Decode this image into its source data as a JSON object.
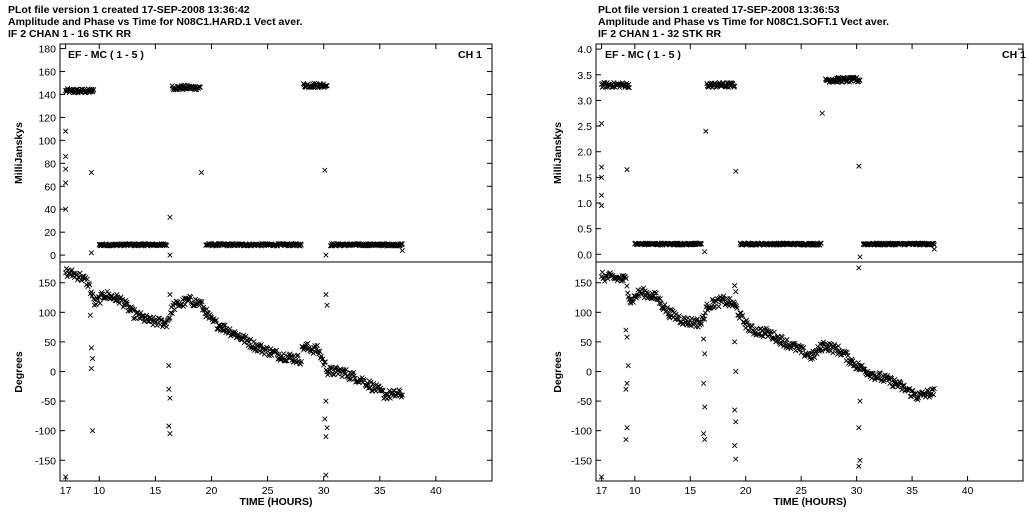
{
  "chart_data": [
    {
      "type": "scatter",
      "header_lines": [
        "PLot file version 1  created 17-SEP-2008 13:36:42",
        "Amplitude and Phase vs Time  for  N08C1.HARD.1  Vect aver.",
        "IF 2   CHAN 1 - 16   STK RR"
      ],
      "panel_label": "EF - MC ( 1 - 5 )",
      "channel_label": "CH 1",
      "xlabel": "TIME (HOURS)",
      "x_tick_labels": [
        "17",
        "10",
        "15",
        "20",
        "25",
        "30",
        "35",
        "40"
      ],
      "xlim": [
        6.5,
        45
      ],
      "amplitude": {
        "ylabel": "MilliJanskys",
        "ylim": [
          -6,
          184
        ],
        "yticks": [
          "0",
          "20",
          "40",
          "60",
          "80",
          "100",
          "120",
          "140",
          "160",
          "180"
        ],
        "segments": [
          {
            "x": [
              7.0,
              9.5
            ],
            "y": 143,
            "spread": 2
          },
          {
            "x": [
              10.0,
              16.0
            ],
            "y": 9,
            "spread": 1
          },
          {
            "x": [
              16.5,
              19.0
            ],
            "y": 146,
            "spread": 2
          },
          {
            "x": [
              19.5,
              28.0
            ],
            "y": 9,
            "spread": 1
          },
          {
            "x": [
              28.2,
              30.3
            ],
            "y": 148,
            "spread": 2
          },
          {
            "x": [
              30.6,
              37.0
            ],
            "y": 9,
            "spread": 1
          }
        ],
        "outliers": [
          [
            7.0,
            108
          ],
          [
            7.0,
            86
          ],
          [
            7.0,
            75
          ],
          [
            7.0,
            63
          ],
          [
            7.0,
            40
          ],
          [
            9.3,
            72
          ],
          [
            9.3,
            2
          ],
          [
            16.3,
            33
          ],
          [
            16.3,
            0
          ],
          [
            19.1,
            72
          ],
          [
            30.1,
            74
          ],
          [
            30.2,
            0
          ],
          [
            37.0,
            4
          ]
        ]
      },
      "phase": {
        "ylabel": "Degrees",
        "ylim": [
          -185,
          185
        ],
        "yticks": [
          "-150",
          "-100",
          "-50",
          "0",
          "50",
          "100",
          "150"
        ],
        "trend": [
          [
            7.0,
            168
          ],
          [
            8.2,
            162
          ],
          [
            9.0,
            150
          ],
          [
            9.6,
            115
          ],
          [
            10.5,
            130
          ],
          [
            12.0,
            120
          ],
          [
            13.0,
            98
          ],
          [
            14.5,
            85
          ],
          [
            16.0,
            82
          ],
          [
            16.6,
            110
          ],
          [
            18.0,
            120
          ],
          [
            19.0,
            115
          ],
          [
            20.0,
            85
          ],
          [
            22.0,
            65
          ],
          [
            24.0,
            42
          ],
          [
            26.0,
            28
          ],
          [
            28.0,
            20
          ],
          [
            28.1,
            42
          ],
          [
            29.5,
            36
          ],
          [
            30.4,
            0
          ],
          [
            31.5,
            0
          ],
          [
            33.5,
            -15
          ],
          [
            35.5,
            -40
          ],
          [
            37.0,
            -38
          ]
        ],
        "outliers": [
          [
            9.2,
            95
          ],
          [
            9.3,
            40
          ],
          [
            9.4,
            22
          ],
          [
            9.3,
            5
          ],
          [
            9.4,
            -100
          ],
          [
            16.2,
            10
          ],
          [
            16.2,
            -30
          ],
          [
            16.3,
            -45
          ],
          [
            16.2,
            -92
          ],
          [
            16.3,
            -105
          ],
          [
            16.3,
            130
          ],
          [
            30.2,
            130
          ],
          [
            30.3,
            112
          ],
          [
            30.2,
            -50
          ],
          [
            30.1,
            -80
          ],
          [
            30.3,
            -95
          ],
          [
            30.2,
            -110
          ],
          [
            30.2,
            -175
          ],
          [
            7.0,
            -178
          ]
        ]
      }
    },
    {
      "type": "scatter",
      "header_lines": [
        "PLot file version 1  created 17-SEP-2008 13:36:53",
        "Amplitude and Phase vs Time  for  N08C1.SOFT.1  Vect aver.",
        "IF 2   CHAN 1 - 32   STK RR"
      ],
      "panel_label": "EF - MC ( 1 - 5 )",
      "channel_label": "CH 1",
      "xlabel": "TIME (HOURS)",
      "x_tick_labels": [
        "17",
        "10",
        "15",
        "20",
        "25",
        "30",
        "35",
        "40"
      ],
      "xlim": [
        6.5,
        45
      ],
      "amplitude": {
        "ylabel": "MilliJanskys",
        "ylim": [
          -0.15,
          4.1
        ],
        "yticks": [
          "0.0",
          "0.5",
          "1.0",
          "1.5",
          "2.0",
          "2.5",
          "3.0",
          "3.5",
          "4.0"
        ],
        "segments": [
          {
            "x": [
              7.0,
              9.5
            ],
            "y": 3.3,
            "spread": 0.05
          },
          {
            "x": [
              10.0,
              16.0
            ],
            "y": 0.2,
            "spread": 0.02
          },
          {
            "x": [
              16.5,
              19.0
            ],
            "y": 3.3,
            "spread": 0.05
          },
          {
            "x": [
              19.5,
              26.8
            ],
            "y": 0.2,
            "spread": 0.02
          },
          {
            "x": [
              27.2,
              30.3
            ],
            "y": 3.4,
            "spread": 0.05
          },
          {
            "x": [
              30.6,
              37.0
            ],
            "y": 0.2,
            "spread": 0.02
          }
        ],
        "outliers": [
          [
            7.0,
            2.55
          ],
          [
            7.0,
            1.7
          ],
          [
            7.0,
            1.5
          ],
          [
            7.0,
            1.15
          ],
          [
            7.0,
            0.95
          ],
          [
            9.3,
            1.65
          ],
          [
            16.4,
            2.4
          ],
          [
            16.3,
            0.05
          ],
          [
            19.1,
            1.62
          ],
          [
            26.9,
            2.75
          ],
          [
            30.2,
            1.72
          ],
          [
            30.3,
            -0.05
          ],
          [
            37.0,
            0.1
          ]
        ]
      },
      "phase": {
        "ylabel": "Degrees",
        "ylim": [
          -185,
          185
        ],
        "yticks": [
          "-150",
          "-100",
          "-50",
          "0",
          "50",
          "100",
          "150"
        ],
        "trend": [
          [
            7.0,
            160
          ],
          [
            8.2,
            158
          ],
          [
            9.2,
            155
          ],
          [
            9.6,
            118
          ],
          [
            10.5,
            135
          ],
          [
            12.0,
            125
          ],
          [
            13.0,
            100
          ],
          [
            14.5,
            85
          ],
          [
            16.0,
            82
          ],
          [
            16.6,
            112
          ],
          [
            18.0,
            120
          ],
          [
            19.0,
            112
          ],
          [
            19.6,
            90
          ],
          [
            20.5,
            70
          ],
          [
            22.0,
            65
          ],
          [
            24.0,
            45
          ],
          [
            26.0,
            25
          ],
          [
            27.0,
            45
          ],
          [
            28.5,
            35
          ],
          [
            30.0,
            10
          ],
          [
            31.5,
            -5
          ],
          [
            33.5,
            -20
          ],
          [
            35.5,
            -42
          ],
          [
            37.0,
            -35
          ]
        ],
        "outliers": [
          [
            9.2,
            70
          ],
          [
            9.3,
            58
          ],
          [
            9.4,
            10
          ],
          [
            9.3,
            -20
          ],
          [
            9.2,
            -30
          ],
          [
            9.3,
            -95
          ],
          [
            9.2,
            -115
          ],
          [
            16.2,
            55
          ],
          [
            16.3,
            30
          ],
          [
            16.2,
            -20
          ],
          [
            16.3,
            -60
          ],
          [
            16.2,
            -105
          ],
          [
            16.3,
            -115
          ],
          [
            19.0,
            145
          ],
          [
            19.1,
            135
          ],
          [
            19.0,
            50
          ],
          [
            19.1,
            0
          ],
          [
            19.0,
            -65
          ],
          [
            19.1,
            -85
          ],
          [
            19.0,
            -125
          ],
          [
            19.1,
            -148
          ],
          [
            30.2,
            175
          ],
          [
            30.3,
            -50
          ],
          [
            30.2,
            -95
          ],
          [
            30.3,
            -150
          ],
          [
            30.2,
            -160
          ],
          [
            7.0,
            -178
          ]
        ]
      }
    }
  ]
}
